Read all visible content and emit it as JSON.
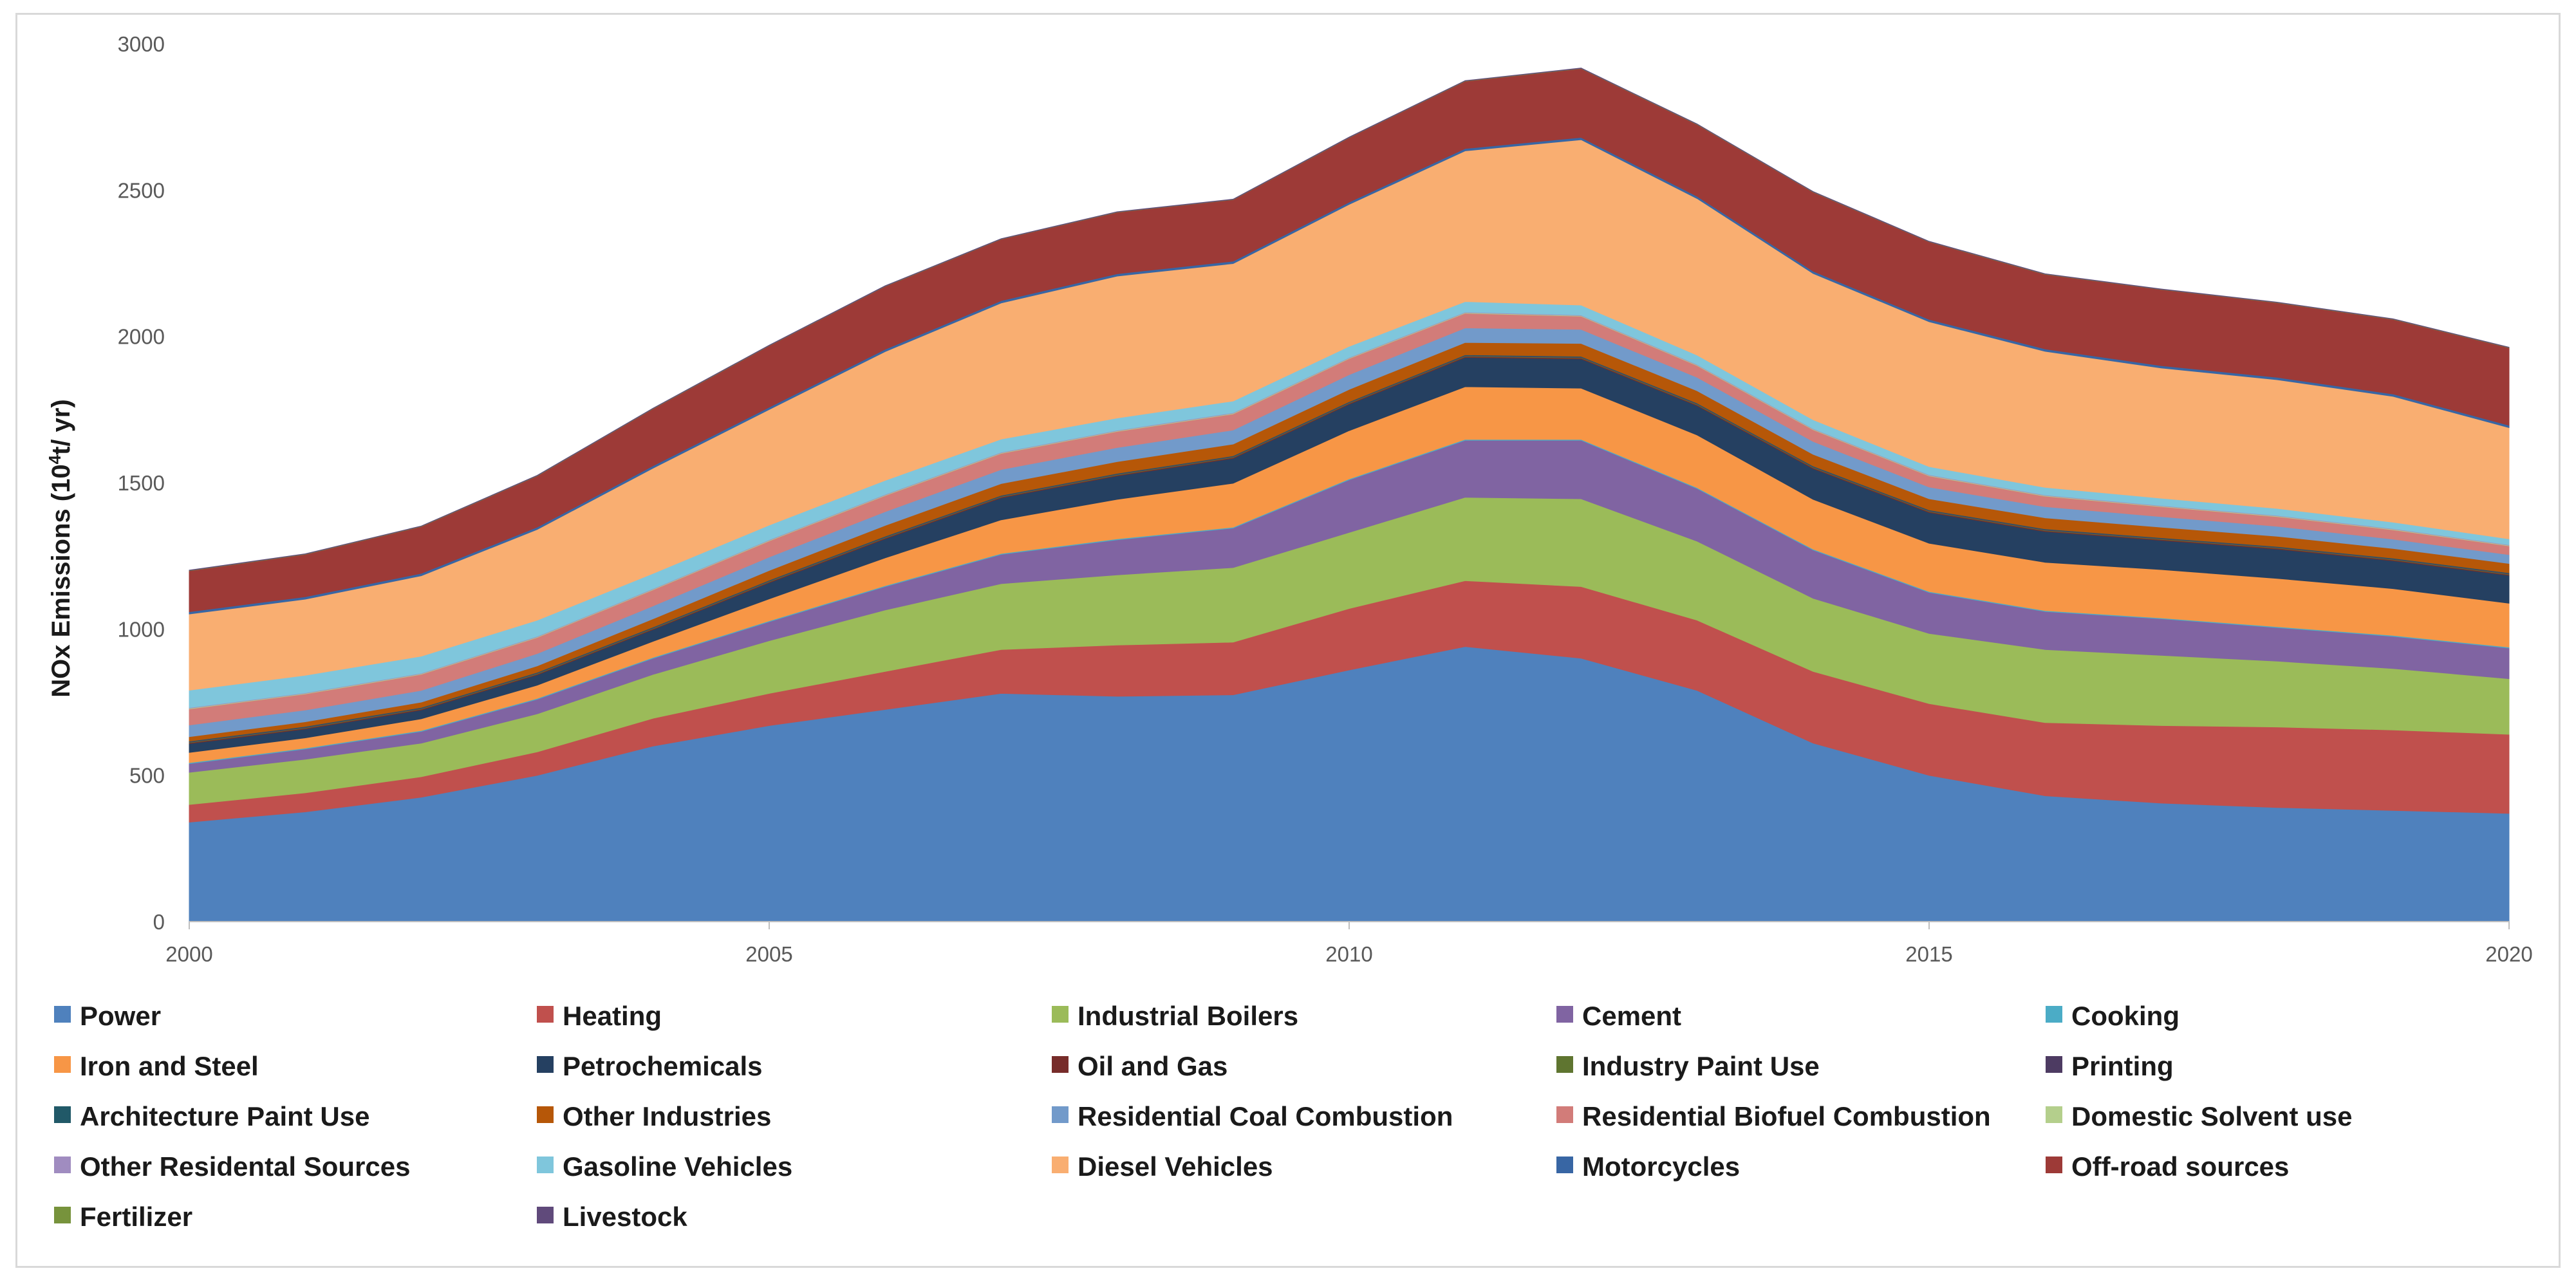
{
  "chart_data": {
    "type": "area",
    "stacked": true,
    "title": "",
    "xlabel": "",
    "ylabel": "NOx Emissions (10",
    "ylabel_sup": "4",
    "ylabel_unit": "t/ yr)",
    "xlim": [
      2000,
      2020
    ],
    "ylim": [
      0,
      3000
    ],
    "x_ticks": [
      "2000",
      "2005",
      "2010",
      "2015",
      "2020"
    ],
    "y_ticks": [
      "0",
      "500",
      "1000",
      "1500",
      "2000",
      "2500",
      "3000"
    ],
    "grid": false,
    "legend_position": "bottom",
    "x": [
      2000,
      2001,
      2002,
      2003,
      2004,
      2005,
      2006,
      2007,
      2008,
      2009,
      2010,
      2011,
      2012,
      2013,
      2014,
      2015,
      2016,
      2017,
      2018,
      2019,
      2020
    ],
    "series": [
      {
        "name": "Power",
        "color": "#4f81bd",
        "values": [
          340,
          375,
          425,
          500,
          600,
          670,
          725,
          780,
          770,
          775,
          860,
          940,
          900,
          790,
          610,
          500,
          430,
          405,
          390,
          380,
          370
        ]
      },
      {
        "name": "Heating",
        "color": "#c0504d",
        "values": [
          60,
          65,
          70,
          80,
          95,
          110,
          130,
          150,
          175,
          180,
          210,
          225,
          245,
          240,
          245,
          245,
          250,
          265,
          275,
          275,
          270
        ]
      },
      {
        "name": "Industrial Boilers",
        "color": "#9bbb59",
        "values": [
          110,
          115,
          115,
          130,
          150,
          180,
          210,
          225,
          240,
          255,
          260,
          285,
          300,
          270,
          250,
          240,
          250,
          240,
          225,
          210,
          190
        ]
      },
      {
        "name": "Cement",
        "color": "#8064a2",
        "values": [
          30,
          35,
          40,
          50,
          55,
          65,
          80,
          100,
          120,
          135,
          180,
          195,
          200,
          180,
          165,
          140,
          130,
          125,
          115,
          110,
          105
        ]
      },
      {
        "name": "Cooking",
        "color": "#4bacc6",
        "values": [
          3,
          3,
          3,
          3,
          3,
          3,
          3,
          3,
          3,
          3,
          3,
          3,
          3,
          3,
          3,
          3,
          3,
          3,
          3,
          3,
          3
        ]
      },
      {
        "name": "Iron and Steel",
        "color": "#f79646",
        "values": [
          35,
          35,
          40,
          45,
          55,
          75,
          95,
          115,
          135,
          150,
          165,
          180,
          175,
          180,
          170,
          165,
          165,
          165,
          165,
          160,
          150
        ]
      },
      {
        "name": "Petrochemicals",
        "color": "#254061",
        "values": [
          30,
          30,
          30,
          35,
          40,
          55,
          65,
          75,
          80,
          85,
          90,
          100,
          100,
          100,
          105,
          105,
          105,
          100,
          100,
          95,
          95
        ]
      },
      {
        "name": "Oil and Gas",
        "color": "#772c2a",
        "values": [
          3,
          3,
          3,
          3,
          3,
          3,
          3,
          3,
          3,
          3,
          3,
          3,
          3,
          3,
          3,
          3,
          3,
          3,
          3,
          3,
          3
        ]
      },
      {
        "name": "Industry Paint Use",
        "color": "#5f7530",
        "values": [
          2,
          2,
          2,
          2,
          2,
          2,
          2,
          2,
          2,
          2,
          2,
          2,
          2,
          2,
          2,
          2,
          2,
          2,
          2,
          2,
          2
        ]
      },
      {
        "name": "Printing",
        "color": "#4d3b62",
        "values": [
          2,
          2,
          2,
          2,
          2,
          2,
          2,
          2,
          2,
          2,
          2,
          2,
          2,
          2,
          2,
          2,
          2,
          2,
          2,
          2,
          2
        ]
      },
      {
        "name": "Architecture Paint Use",
        "color": "#215968",
        "values": [
          2,
          2,
          2,
          2,
          2,
          2,
          2,
          2,
          2,
          2,
          2,
          2,
          2,
          2,
          2,
          2,
          2,
          2,
          2,
          2,
          2
        ]
      },
      {
        "name": "Other Industries",
        "color": "#b65708",
        "values": [
          15,
          16,
          18,
          22,
          28,
          33,
          37,
          40,
          40,
          40,
          42,
          42,
          44,
          42,
          40,
          38,
          38,
          36,
          35,
          33,
          32
        ]
      },
      {
        "name": "Residential Coal Combustion",
        "color": "#729aca",
        "values": [
          40,
          40,
          40,
          42,
          44,
          46,
          47,
          48,
          48,
          48,
          50,
          50,
          48,
          46,
          44,
          40,
          38,
          36,
          34,
          32,
          30
        ]
      },
      {
        "name": "Residential Biofuel Combustion",
        "color": "#d27c79",
        "values": [
          55,
          55,
          55,
          55,
          55,
          55,
          55,
          55,
          55,
          55,
          55,
          50,
          45,
          40,
          40,
          38,
          36,
          34,
          33,
          32,
          30
        ]
      },
      {
        "name": "Domestic Solvent use",
        "color": "#b4cf8c",
        "values": [
          2,
          2,
          2,
          2,
          2,
          2,
          2,
          2,
          2,
          2,
          2,
          2,
          2,
          2,
          2,
          2,
          2,
          2,
          2,
          2,
          2
        ]
      },
      {
        "name": "Other Residental Sources",
        "color": "#a08cc0",
        "values": [
          2,
          2,
          2,
          2,
          2,
          2,
          2,
          2,
          2,
          2,
          2,
          2,
          2,
          2,
          2,
          2,
          2,
          2,
          2,
          2,
          2
        ]
      },
      {
        "name": "Gasoline Vehicles",
        "color": "#7fc6dc",
        "values": [
          60,
          60,
          58,
          55,
          52,
          50,
          48,
          45,
          42,
          40,
          38,
          36,
          34,
          32,
          30,
          28,
          26,
          25,
          24,
          22,
          20
        ]
      },
      {
        "name": "Diesel Vehicles",
        "color": "#f9ae71",
        "values": [
          260,
          260,
          275,
          310,
          360,
          395,
          440,
          465,
          485,
          470,
          485,
          515,
          565,
          535,
          500,
          495,
          465,
          445,
          440,
          430,
          380
        ]
      },
      {
        "name": "Motorcycles",
        "color": "#3866a4",
        "values": [
          8,
          8,
          8,
          8,
          8,
          8,
          8,
          8,
          8,
          8,
          8,
          8,
          8,
          8,
          8,
          8,
          8,
          8,
          8,
          8,
          8
        ]
      },
      {
        "name": "Off-road sources",
        "color": "#9d3a37",
        "values": [
          140,
          145,
          160,
          175,
          195,
          210,
          215,
          210,
          210,
          210,
          220,
          230,
          235,
          245,
          270,
          265,
          255,
          260,
          255,
          255,
          265
        ]
      },
      {
        "name": "Fertilizer",
        "color": "#77933c",
        "values": [
          1,
          1,
          1,
          1,
          1,
          1,
          1,
          1,
          1,
          1,
          1,
          1,
          1,
          1,
          1,
          1,
          1,
          1,
          1,
          1,
          1
        ]
      },
      {
        "name": "Livestock",
        "color": "#604a7b",
        "values": [
          1,
          1,
          1,
          1,
          1,
          1,
          1,
          1,
          1,
          1,
          1,
          1,
          1,
          1,
          1,
          1,
          1,
          1,
          1,
          1,
          1
        ]
      }
    ]
  }
}
